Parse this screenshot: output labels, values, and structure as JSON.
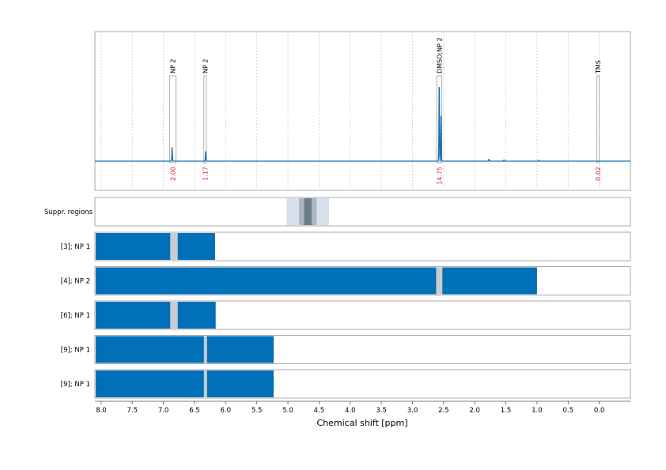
{
  "chart_data": {
    "type": "nmr-spectrum",
    "xlabel": "Chemical shift [ppm]",
    "xlim": [
      8.1,
      -0.5
    ],
    "xticks": [
      8.0,
      7.5,
      7.0,
      6.5,
      6.0,
      5.5,
      5.0,
      4.5,
      4.0,
      3.5,
      3.0,
      2.5,
      2.0,
      1.5,
      1.0,
      0.5,
      0.0
    ],
    "xtick_labels": [
      "8.0",
      "7.5",
      "7.0",
      "6.5",
      "6.0",
      "5.5",
      "5.0",
      "4.5",
      "4.0",
      "3.5",
      "3.0",
      "2.5",
      "2.0",
      "1.5",
      "1.0",
      "0.5",
      "0.0"
    ],
    "spectrum": {
      "color": "#1a6fb0",
      "peaks": [
        {
          "x": 6.86,
          "height": 0.17
        },
        {
          "x": 6.32,
          "height": 0.12
        },
        {
          "x": 2.57,
          "height": 1.0
        },
        {
          "x": 2.54,
          "height": 0.55
        },
        {
          "x": 1.77,
          "height": 0.025
        },
        {
          "x": 1.53,
          "height": 0.015
        },
        {
          "x": 0.97,
          "height": 0.012
        }
      ]
    },
    "integration_regions": [
      {
        "label": "NP 2",
        "start": 6.9,
        "end": 6.8,
        "integral": "2.00"
      },
      {
        "label": "NP 2",
        "start": 6.35,
        "end": 6.31,
        "integral": "1.17"
      },
      {
        "label": "DMSO;NP 2",
        "start": 2.61,
        "end": 2.53,
        "integral": "14.75"
      },
      {
        "label": "TMS",
        "start": 0.04,
        "end": 0.0,
        "integral": "0.02"
      }
    ],
    "integral_color": "#d62728",
    "suppression": {
      "label": "Suppr. regions",
      "bands": [
        {
          "start": 5.02,
          "end": 4.34,
          "color": "#d7e0e8"
        },
        {
          "start": 4.82,
          "end": 4.54,
          "color": "#a8b6c2"
        },
        {
          "start": 4.74,
          "end": 4.62,
          "color": "#6b7d8b"
        }
      ]
    },
    "bar_color": "#0070b8",
    "gap_color": "#c8cdd2",
    "rows": [
      {
        "label": "[3]; NP 1",
        "start": 8.1,
        "end": 6.17,
        "gaps": [
          {
            "start": 6.89,
            "end": 6.77
          }
        ]
      },
      {
        "label": "[4]; NP 2",
        "start": 8.1,
        "end": 1.0,
        "gaps": [
          {
            "start": 2.62,
            "end": 2.52
          }
        ]
      },
      {
        "label": "[6]; NP 1",
        "start": 8.1,
        "end": 6.16,
        "gaps": [
          {
            "start": 6.89,
            "end": 6.77
          }
        ]
      },
      {
        "label": "[9]; NP 1",
        "start": 8.1,
        "end": 5.23,
        "gaps": [
          {
            "start": 6.35,
            "end": 6.3
          }
        ]
      },
      {
        "label": "[9]; NP 1",
        "start": 8.1,
        "end": 5.23,
        "gaps": [
          {
            "start": 6.35,
            "end": 6.3
          }
        ]
      }
    ]
  }
}
